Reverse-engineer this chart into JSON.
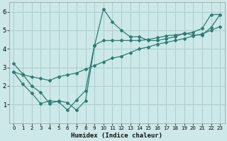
{
  "xlabel": "Humidex (Indice chaleur)",
  "ylabel": "",
  "background_color": "#cce8e8",
  "grid_color": "#aacfcf",
  "line_color": "#2d7d74",
  "xlim": [
    -0.5,
    23.5
  ],
  "ylim": [
    0,
    6.5
  ],
  "xticks": [
    0,
    1,
    2,
    3,
    4,
    5,
    6,
    7,
    8,
    9,
    10,
    11,
    12,
    13,
    14,
    15,
    16,
    17,
    18,
    19,
    20,
    21,
    22,
    23
  ],
  "yticks": [
    1,
    2,
    3,
    4,
    5,
    6
  ],
  "curve1_x": [
    0,
    1,
    2,
    3,
    4,
    5,
    6,
    7,
    8,
    9,
    10,
    11,
    12,
    13,
    14,
    15,
    16,
    17,
    18,
    19,
    20,
    21,
    22,
    23
  ],
  "curve1_y": [
    3.2,
    2.65,
    2.0,
    1.65,
    1.05,
    1.2,
    1.1,
    0.7,
    1.2,
    4.15,
    6.15,
    5.45,
    5.0,
    4.65,
    4.65,
    4.45,
    4.45,
    4.55,
    4.65,
    4.85,
    4.75,
    4.75,
    5.15,
    5.85
  ],
  "curve2_x": [
    0,
    1,
    2,
    3,
    4,
    5,
    6,
    7,
    8,
    9,
    10,
    11,
    12,
    13,
    14,
    15,
    16,
    17,
    18,
    19,
    20,
    21,
    22,
    23
  ],
  "curve2_y": [
    2.75,
    2.6,
    2.5,
    2.4,
    2.3,
    2.5,
    2.6,
    2.7,
    2.9,
    3.1,
    3.3,
    3.5,
    3.6,
    3.8,
    4.0,
    4.1,
    4.25,
    4.35,
    4.45,
    4.55,
    4.7,
    4.8,
    5.0,
    5.2
  ],
  "curve3_x": [
    0,
    1,
    2,
    3,
    4,
    5,
    6,
    7,
    8,
    9,
    10,
    11,
    12,
    13,
    14,
    15,
    16,
    17,
    18,
    19,
    20,
    21,
    22,
    23
  ],
  "curve3_y": [
    2.75,
    2.1,
    1.62,
    1.05,
    1.2,
    1.15,
    0.7,
    1.25,
    1.75,
    4.2,
    4.45,
    4.45,
    4.45,
    4.45,
    4.45,
    4.5,
    4.6,
    4.7,
    4.75,
    4.8,
    4.9,
    5.1,
    5.85,
    5.85
  ]
}
